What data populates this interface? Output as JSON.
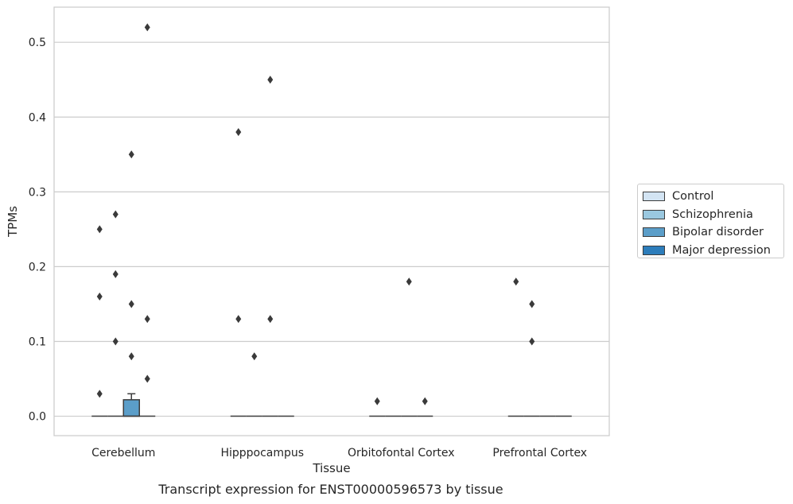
{
  "chart_data": {
    "type": "box",
    "title": "Transcript expression for ENST00000596573 by tissue",
    "xlabel": "Tissue",
    "ylabel": "TPMs",
    "ylim": [
      -0.026,
      0.547
    ],
    "yticks": [
      "0.0",
      "0.1",
      "0.2",
      "0.3",
      "0.4",
      "0.5"
    ],
    "grid": true,
    "legend_position": "right",
    "categories": [
      "Cerebellum",
      "Hipppocampus",
      "Orbitofontal Cortex",
      "Prefrontal Cortex"
    ],
    "series": [
      {
        "name": "Control",
        "color": "#d3e4f3",
        "boxes": [
          {
            "q1": 0,
            "median": 0,
            "q3": 0,
            "whisker_low": 0,
            "whisker_high": 0,
            "outliers": [
              0.03,
              0.16,
              0.25
            ]
          },
          {
            "q1": 0,
            "median": 0,
            "q3": 0,
            "whisker_low": 0,
            "whisker_high": 0,
            "outliers": [
              0.13,
              0.38
            ]
          },
          {
            "q1": 0,
            "median": 0,
            "q3": 0,
            "whisker_low": 0,
            "whisker_high": 0,
            "outliers": [
              0.02
            ]
          },
          {
            "q1": 0,
            "median": 0,
            "q3": 0,
            "whisker_low": 0,
            "whisker_high": 0,
            "outliers": [
              0.18
            ]
          }
        ]
      },
      {
        "name": "Schizophrenia",
        "color": "#9ac8e0",
        "boxes": [
          {
            "q1": 0,
            "median": 0,
            "q3": 0,
            "whisker_low": 0,
            "whisker_high": 0,
            "outliers": [
              0.1,
              0.19,
              0.27
            ]
          },
          {
            "q1": 0,
            "median": 0,
            "q3": 0,
            "whisker_low": 0,
            "whisker_high": 0,
            "outliers": [
              0.08
            ]
          },
          {
            "q1": 0,
            "median": 0,
            "q3": 0,
            "whisker_low": 0,
            "whisker_high": 0,
            "outliers": []
          },
          {
            "q1": 0,
            "median": 0,
            "q3": 0,
            "whisker_low": 0,
            "whisker_high": 0,
            "outliers": [
              0.1,
              0.15
            ]
          }
        ]
      },
      {
        "name": "Bipolar disorder",
        "color": "#5b9ec9",
        "boxes": [
          {
            "q1": 0,
            "median": 0,
            "q3": 0.022,
            "whisker_low": 0,
            "whisker_high": 0.03,
            "outliers": [
              0.08,
              0.15,
              0.35
            ]
          },
          {
            "q1": 0,
            "median": 0,
            "q3": 0,
            "whisker_low": 0,
            "whisker_high": 0,
            "outliers": [
              0.13,
              0.45
            ]
          },
          {
            "q1": 0,
            "median": 0,
            "q3": 0,
            "whisker_low": 0,
            "whisker_high": 0,
            "outliers": [
              0.18
            ]
          },
          {
            "q1": 0,
            "median": 0,
            "q3": 0,
            "whisker_low": 0,
            "whisker_high": 0,
            "outliers": []
          }
        ]
      },
      {
        "name": "Major depression",
        "color": "#2d7dbb",
        "boxes": [
          {
            "q1": 0,
            "median": 0,
            "q3": 0,
            "whisker_low": 0,
            "whisker_high": 0,
            "outliers": [
              0.05,
              0.13,
              0.52
            ]
          },
          {
            "q1": 0,
            "median": 0,
            "q3": 0,
            "whisker_low": 0,
            "whisker_high": 0,
            "outliers": []
          },
          {
            "q1": 0,
            "median": 0,
            "q3": 0,
            "whisker_low": 0,
            "whisker_high": 0,
            "outliers": [
              0.02
            ]
          },
          {
            "q1": 0,
            "median": 0,
            "q3": 0,
            "whisker_low": 0,
            "whisker_high": 0,
            "outliers": []
          }
        ]
      }
    ]
  }
}
